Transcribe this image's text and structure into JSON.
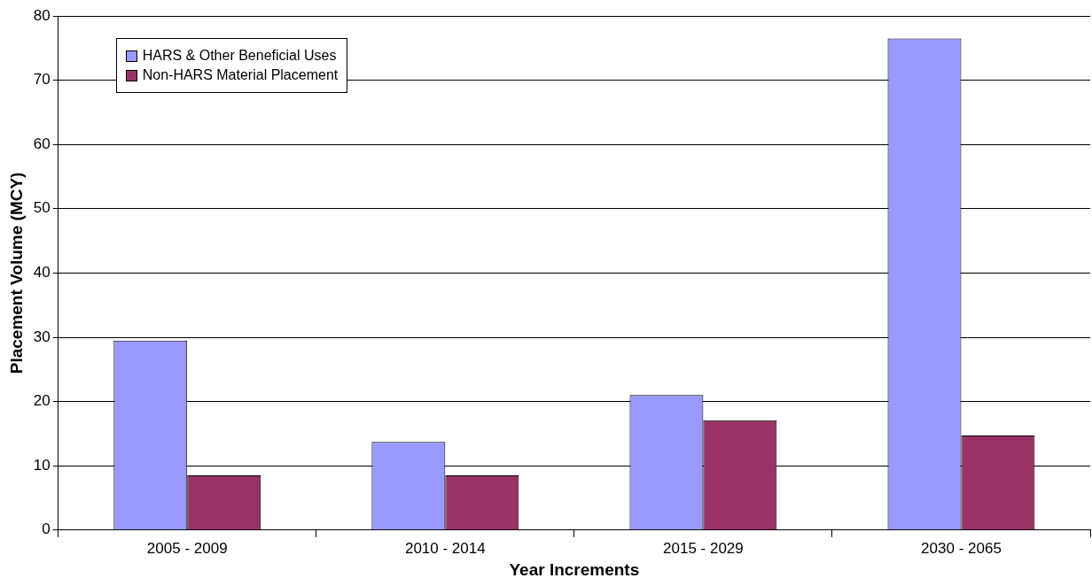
{
  "chart_data": {
    "type": "bar",
    "xlabel": "Year Increments",
    "ylabel": "Placement Volume (MCY)",
    "categories": [
      "2005 - 2009",
      "2010 - 2014",
      "2015 - 2029",
      "2030 - 2065"
    ],
    "series": [
      {
        "name": "HARS & Other Beneficial Uses",
        "color": "#9999ff",
        "values": [
          29.5,
          13.7,
          21.0,
          76.5
        ]
      },
      {
        "name": "Non-HARS Material Placement",
        "color": "#993366",
        "values": [
          8.5,
          8.5,
          17.1,
          14.7
        ]
      }
    ],
    "ylim": [
      0,
      80
    ],
    "yticks": [
      0,
      10,
      20,
      30,
      40,
      50,
      60,
      70,
      80
    ],
    "grid": "y",
    "legend": "top left"
  }
}
